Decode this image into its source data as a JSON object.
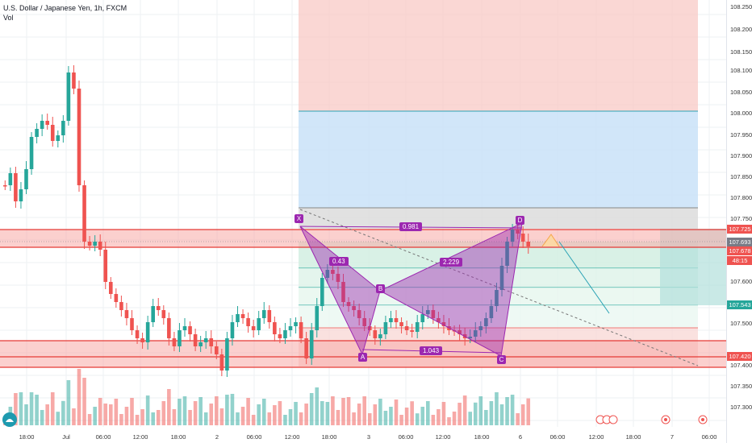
{
  "header": {
    "symbol_line": "U.S. Dollar / Japanese Yen, 1h, FXCM",
    "indicator": "Vol"
  },
  "price_scale": {
    "ticks": [
      "108.250",
      "108.200",
      "108.150",
      "108.100",
      "108.050",
      "108.000",
      "107.950",
      "107.900",
      "107.850",
      "107.800",
      "107.750",
      "107.650",
      "107.600",
      "107.500",
      "107.450",
      "107.400",
      "107.350",
      "107.300"
    ],
    "tags": [
      {
        "label": "107.725",
        "color": "#ef5350"
      },
      {
        "label": "107.693",
        "color": "#787b86"
      },
      {
        "label": "107.678",
        "color": "#ef5350"
      },
      {
        "label": "48:15",
        "color": "#ef5350"
      },
      {
        "label": "107.543",
        "color": "#26a69a"
      },
      {
        "label": "107.420",
        "color": "#ef5350"
      }
    ]
  },
  "time_axis": [
    "18:00",
    "Jul",
    "06:00",
    "12:00",
    "18:00",
    "2",
    "06:00",
    "12:00",
    "18:00",
    "3",
    "06:00",
    "12:00",
    "18:00",
    "6",
    "06:00",
    "12:00",
    "18:00",
    "7",
    "06:00"
  ],
  "pattern": {
    "points": [
      "X",
      "A",
      "B",
      "C",
      "D"
    ],
    "ratios": [
      "0.43",
      "2.229",
      "0.981",
      "1.043"
    ]
  },
  "colors": {
    "up": "#26a69a",
    "down": "#ef5350",
    "pattern": "#9c27b0"
  },
  "icons": [
    "tradingview-logo-icon",
    "event-calendar-icon",
    "dividend-icon"
  ]
}
